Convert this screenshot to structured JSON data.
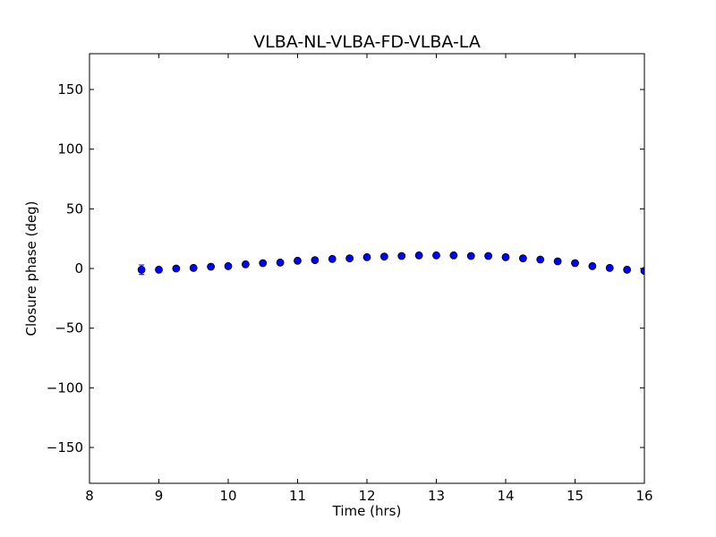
{
  "chart_data": {
    "type": "scatter",
    "title": "VLBA-NL-VLBA-FD-VLBA-LA",
    "xlabel": "Time (hrs)",
    "ylabel": "Closure phase (deg)",
    "xlim": [
      8,
      16
    ],
    "ylim": [
      -180,
      180
    ],
    "x_ticks": [
      8,
      9,
      10,
      11,
      12,
      13,
      14,
      15,
      16
    ],
    "x_tick_labels": [
      "8",
      "9",
      "10",
      "11",
      "12",
      "13",
      "14",
      "15",
      "16"
    ],
    "y_ticks": [
      -150,
      -100,
      -50,
      0,
      50,
      100,
      150
    ],
    "y_tick_labels": [
      "−150",
      "−100",
      "−50",
      "0",
      "50",
      "100",
      "150"
    ],
    "grid": false,
    "marker_color": "#0000ff",
    "points": [
      {
        "x": 8.75,
        "y": -1.0,
        "err": 4.0
      },
      {
        "x": 9.0,
        "y": -1.0,
        "err": 0.8
      },
      {
        "x": 9.25,
        "y": 0.0,
        "err": 0.8
      },
      {
        "x": 9.5,
        "y": 0.5,
        "err": 0.8
      },
      {
        "x": 9.75,
        "y": 1.5,
        "err": 0.8
      },
      {
        "x": 10.0,
        "y": 2.0,
        "err": 0.8
      },
      {
        "x": 10.25,
        "y": 3.5,
        "err": 0.8
      },
      {
        "x": 10.5,
        "y": 4.5,
        "err": 0.8
      },
      {
        "x": 10.75,
        "y": 5.0,
        "err": 0.8
      },
      {
        "x": 11.0,
        "y": 6.5,
        "err": 0.8
      },
      {
        "x": 11.25,
        "y": 7.0,
        "err": 0.8
      },
      {
        "x": 11.5,
        "y": 8.0,
        "err": 0.8
      },
      {
        "x": 11.75,
        "y": 8.5,
        "err": 0.8
      },
      {
        "x": 12.0,
        "y": 9.5,
        "err": 0.8
      },
      {
        "x": 12.25,
        "y": 10.0,
        "err": 0.8
      },
      {
        "x": 12.5,
        "y": 10.5,
        "err": 0.8
      },
      {
        "x": 12.75,
        "y": 11.0,
        "err": 0.8
      },
      {
        "x": 13.0,
        "y": 11.0,
        "err": 0.8
      },
      {
        "x": 13.25,
        "y": 11.0,
        "err": 0.8
      },
      {
        "x": 13.5,
        "y": 10.5,
        "err": 0.8
      },
      {
        "x": 13.75,
        "y": 10.5,
        "err": 0.8
      },
      {
        "x": 14.0,
        "y": 9.5,
        "err": 0.8
      },
      {
        "x": 14.25,
        "y": 8.5,
        "err": 0.8
      },
      {
        "x": 14.5,
        "y": 7.5,
        "err": 0.8
      },
      {
        "x": 14.75,
        "y": 6.0,
        "err": 0.8
      },
      {
        "x": 15.0,
        "y": 4.5,
        "err": 0.8
      },
      {
        "x": 15.25,
        "y": 2.0,
        "err": 0.8
      },
      {
        "x": 15.5,
        "y": 0.5,
        "err": 0.8
      },
      {
        "x": 15.75,
        "y": -1.0,
        "err": 0.8
      },
      {
        "x": 16.0,
        "y": -2.0,
        "err": 0.8
      }
    ]
  }
}
